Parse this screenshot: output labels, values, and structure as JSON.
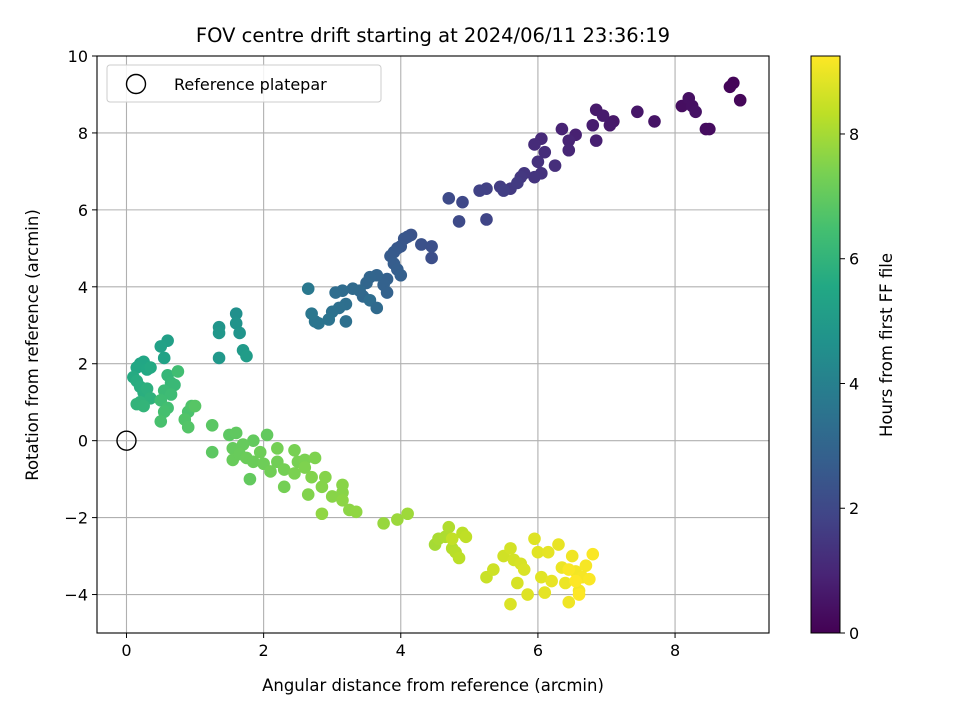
{
  "chart_data": {
    "type": "scatter",
    "title": "FOV centre drift starting at 2024/06/11 23:36:19",
    "xlabel": "Angular distance from reference (arcmin)",
    "ylabel": "Rotation from reference (arcmin)",
    "xlim": [
      -0.43,
      9.37
    ],
    "ylim": [
      -5,
      10
    ],
    "xticks": [
      "0",
      "2",
      "4",
      "6",
      "8"
    ],
    "yticks": [
      "−4",
      "−2",
      "0",
      "2",
      "4",
      "6",
      "8",
      "10"
    ],
    "grid": true,
    "colormap": "viridis",
    "colorbar": {
      "label": "Hours from first FF file",
      "range": [
        0,
        9.25
      ],
      "ticks": [
        "0",
        "2",
        "4",
        "6",
        "8"
      ]
    },
    "legend": {
      "position": "top-left",
      "entries": [
        "Reference platepar"
      ]
    },
    "reference_point": {
      "x": 0,
      "y": 0
    },
    "series": [
      {
        "points": [
          [
            8.85,
            9.3,
            0.1
          ],
          [
            8.8,
            9.2,
            0.1
          ],
          [
            8.95,
            8.85,
            0.15
          ],
          [
            8.45,
            8.1,
            0.3
          ],
          [
            8.5,
            8.1,
            0.3
          ],
          [
            8.1,
            8.7,
            0.35
          ],
          [
            8.2,
            8.9,
            0.4
          ],
          [
            8.25,
            8.7,
            0.4
          ],
          [
            8.3,
            8.55,
            0.45
          ],
          [
            7.7,
            8.3,
            0.5
          ],
          [
            7.45,
            8.55,
            0.55
          ],
          [
            7.1,
            8.3,
            0.6
          ],
          [
            7.05,
            8.2,
            0.65
          ],
          [
            6.85,
            8.6,
            0.65
          ],
          [
            6.95,
            8.45,
            0.7
          ],
          [
            6.8,
            8.2,
            0.75
          ],
          [
            6.85,
            7.8,
            0.8
          ],
          [
            6.55,
            7.95,
            0.85
          ],
          [
            6.35,
            8.1,
            0.9
          ],
          [
            6.45,
            7.8,
            0.95
          ],
          [
            6.45,
            7.55,
            1.0
          ],
          [
            6.05,
            7.85,
            1.1
          ],
          [
            5.95,
            7.7,
            1.15
          ],
          [
            6.1,
            7.5,
            1.2
          ],
          [
            6.25,
            7.15,
            1.25
          ],
          [
            6.0,
            7.25,
            1.3
          ],
          [
            6.05,
            6.95,
            1.35
          ],
          [
            5.95,
            6.85,
            1.4
          ],
          [
            5.8,
            6.95,
            1.45
          ],
          [
            5.75,
            6.85,
            1.5
          ],
          [
            5.6,
            6.55,
            1.55
          ],
          [
            5.7,
            6.7,
            1.6
          ],
          [
            5.45,
            6.6,
            1.65
          ],
          [
            5.5,
            6.5,
            1.7
          ],
          [
            5.25,
            6.55,
            1.75
          ],
          [
            5.15,
            6.5,
            1.8
          ],
          [
            5.25,
            5.75,
            1.9
          ],
          [
            4.9,
            6.2,
            2.0
          ],
          [
            4.85,
            5.7,
            2.05
          ],
          [
            4.7,
            6.3,
            2.1
          ],
          [
            4.45,
            4.75,
            2.2
          ],
          [
            4.45,
            5.05,
            2.25
          ],
          [
            4.3,
            5.1,
            2.3
          ],
          [
            4.15,
            5.35,
            2.35
          ],
          [
            4.1,
            5.3,
            2.4
          ],
          [
            4.05,
            5.25,
            2.45
          ],
          [
            4.0,
            5.05,
            2.5
          ],
          [
            3.95,
            5.0,
            2.55
          ],
          [
            3.9,
            4.9,
            2.6
          ],
          [
            3.85,
            4.8,
            2.65
          ],
          [
            3.9,
            4.6,
            2.7
          ],
          [
            3.95,
            4.45,
            2.75
          ],
          [
            4.0,
            4.3,
            2.8
          ],
          [
            3.8,
            4.2,
            2.85
          ],
          [
            3.75,
            4.05,
            2.9
          ],
          [
            3.65,
            4.3,
            2.95
          ],
          [
            3.55,
            4.25,
            3.0
          ],
          [
            3.5,
            4.1,
            3.05
          ],
          [
            3.45,
            3.75,
            3.1
          ],
          [
            3.4,
            3.9,
            3.15
          ],
          [
            3.3,
            3.95,
            3.2
          ],
          [
            3.15,
            3.9,
            3.25
          ],
          [
            3.05,
            3.85,
            3.3
          ],
          [
            3.2,
            3.55,
            3.35
          ],
          [
            3.1,
            3.45,
            3.4
          ],
          [
            3.0,
            3.35,
            3.45
          ],
          [
            2.95,
            3.15,
            3.5
          ],
          [
            2.8,
            3.05,
            3.55
          ],
          [
            2.75,
            3.1,
            3.6
          ],
          [
            2.7,
            3.3,
            3.65
          ],
          [
            2.65,
            3.95,
            3.7
          ],
          [
            3.55,
            3.65,
            3.3
          ],
          [
            3.65,
            3.45,
            3.2
          ],
          [
            3.8,
            3.85,
            2.9
          ],
          [
            3.2,
            3.1,
            3.4
          ],
          [
            1.6,
            3.3,
            4.6
          ],
          [
            1.6,
            3.05,
            4.7
          ],
          [
            1.65,
            2.8,
            4.75
          ],
          [
            1.35,
            2.95,
            4.8
          ],
          [
            1.35,
            2.8,
            4.85
          ],
          [
            1.35,
            2.15,
            4.9
          ],
          [
            1.7,
            2.35,
            5.0
          ],
          [
            1.75,
            2.2,
            5.05
          ],
          [
            0.6,
            2.6,
            5.2
          ],
          [
            0.5,
            2.45,
            5.25
          ],
          [
            0.55,
            2.15,
            5.3
          ],
          [
            0.2,
            2.0,
            5.4
          ],
          [
            0.25,
            2.05,
            5.45
          ],
          [
            0.15,
            1.9,
            5.5
          ],
          [
            0.3,
            1.85,
            5.55
          ],
          [
            0.35,
            1.9,
            5.6
          ],
          [
            0.1,
            1.65,
            5.65
          ],
          [
            0.15,
            1.55,
            5.7
          ],
          [
            0.2,
            1.4,
            5.75
          ],
          [
            0.25,
            1.25,
            5.8
          ],
          [
            0.3,
            1.35,
            5.85
          ],
          [
            0.35,
            1.1,
            5.9
          ],
          [
            0.2,
            1.0,
            5.95
          ],
          [
            0.15,
            0.95,
            6.0
          ],
          [
            0.25,
            0.9,
            6.05
          ],
          [
            0.6,
            1.7,
            6.1
          ],
          [
            0.65,
            1.5,
            6.15
          ],
          [
            0.7,
            1.45,
            6.2
          ],
          [
            0.55,
            1.3,
            6.25
          ],
          [
            0.65,
            1.2,
            6.3
          ],
          [
            0.5,
            1.05,
            6.35
          ],
          [
            0.75,
            1.8,
            6.4
          ],
          [
            0.6,
            0.85,
            6.45
          ],
          [
            0.55,
            0.75,
            6.5
          ],
          [
            0.5,
            0.5,
            6.55
          ],
          [
            0.9,
            0.75,
            6.6
          ],
          [
            0.95,
            0.9,
            6.65
          ],
          [
            0.85,
            0.55,
            6.7
          ],
          [
            0.9,
            0.35,
            6.75
          ],
          [
            1.0,
            0.9,
            6.8
          ],
          [
            1.25,
            0.4,
            6.85
          ],
          [
            1.5,
            0.15,
            6.9
          ],
          [
            1.6,
            0.2,
            6.95
          ],
          [
            2.05,
            0.15,
            7.0
          ],
          [
            1.85,
            0.0,
            7.0
          ],
          [
            1.7,
            -0.1,
            7.05
          ],
          [
            1.55,
            -0.2,
            7.05
          ],
          [
            1.55,
            -0.5,
            7.1
          ],
          [
            1.65,
            -0.35,
            7.1
          ],
          [
            1.75,
            -0.45,
            7.15
          ],
          [
            1.85,
            -0.55,
            7.15
          ],
          [
            1.95,
            -0.3,
            7.2
          ],
          [
            2.0,
            -0.6,
            7.2
          ],
          [
            2.1,
            -0.8,
            7.25
          ],
          [
            2.2,
            -0.55,
            7.25
          ],
          [
            2.3,
            -0.75,
            7.3
          ],
          [
            2.2,
            -0.2,
            7.3
          ],
          [
            2.45,
            -0.25,
            7.35
          ],
          [
            2.5,
            -0.55,
            7.35
          ],
          [
            2.45,
            -0.85,
            7.4
          ],
          [
            2.6,
            -0.5,
            7.4
          ],
          [
            2.75,
            -0.45,
            7.45
          ],
          [
            2.6,
            -0.7,
            7.45
          ],
          [
            2.7,
            -0.95,
            7.5
          ],
          [
            2.65,
            -1.4,
            7.5
          ],
          [
            2.85,
            -1.2,
            7.55
          ],
          [
            2.9,
            -0.95,
            7.55
          ],
          [
            3.0,
            -1.45,
            7.6
          ],
          [
            3.15,
            -1.35,
            7.6
          ],
          [
            3.25,
            -1.8,
            7.65
          ],
          [
            3.35,
            -1.85,
            7.7
          ],
          [
            3.15,
            -1.55,
            7.65
          ],
          [
            2.85,
            -1.9,
            7.7
          ],
          [
            3.75,
            -2.15,
            7.8
          ],
          [
            3.95,
            -2.05,
            7.85
          ],
          [
            4.1,
            -1.9,
            7.9
          ],
          [
            1.25,
            -0.3,
            6.9
          ],
          [
            1.8,
            -1.0,
            7.0
          ],
          [
            2.3,
            -1.2,
            7.3
          ],
          [
            3.15,
            -1.15,
            7.6
          ],
          [
            4.5,
            -2.7,
            8.0
          ],
          [
            4.55,
            -2.55,
            8.05
          ],
          [
            4.65,
            -2.5,
            8.1
          ],
          [
            4.7,
            -2.25,
            8.15
          ],
          [
            4.75,
            -2.8,
            8.2
          ],
          [
            4.8,
            -2.9,
            8.25
          ],
          [
            4.85,
            -3.05,
            8.3
          ],
          [
            4.9,
            -2.4,
            8.3
          ],
          [
            4.95,
            -2.5,
            8.35
          ],
          [
            4.75,
            -2.55,
            8.4
          ],
          [
            5.25,
            -3.55,
            8.5
          ],
          [
            5.35,
            -3.35,
            8.55
          ],
          [
            5.5,
            -3.0,
            8.6
          ],
          [
            5.6,
            -2.8,
            8.65
          ],
          [
            5.65,
            -3.1,
            8.65
          ],
          [
            5.7,
            -3.7,
            8.7
          ],
          [
            5.75,
            -3.2,
            8.7
          ],
          [
            5.8,
            -3.35,
            8.75
          ],
          [
            5.6,
            -4.25,
            8.75
          ],
          [
            5.85,
            -4.0,
            8.8
          ],
          [
            5.95,
            -2.55,
            8.8
          ],
          [
            6.0,
            -2.9,
            8.85
          ],
          [
            6.05,
            -3.55,
            8.85
          ],
          [
            6.1,
            -3.95,
            8.9
          ],
          [
            6.15,
            -2.9,
            8.9
          ],
          [
            6.2,
            -3.65,
            8.95
          ],
          [
            6.3,
            -2.7,
            8.95
          ],
          [
            6.35,
            -3.3,
            9.0
          ],
          [
            6.4,
            -3.7,
            9.0
          ],
          [
            6.45,
            -4.2,
            9.05
          ],
          [
            6.5,
            -3.0,
            9.05
          ],
          [
            6.55,
            -3.4,
            9.1
          ],
          [
            6.6,
            -3.9,
            9.1
          ],
          [
            6.65,
            -3.55,
            9.15
          ],
          [
            6.7,
            -3.25,
            9.15
          ],
          [
            6.75,
            -3.6,
            9.2
          ],
          [
            6.8,
            -2.95,
            9.2
          ],
          [
            6.55,
            -3.65,
            9.25
          ],
          [
            6.6,
            -4.0,
            9.25
          ],
          [
            6.45,
            -3.35,
            9.2
          ]
        ]
      }
    ]
  }
}
